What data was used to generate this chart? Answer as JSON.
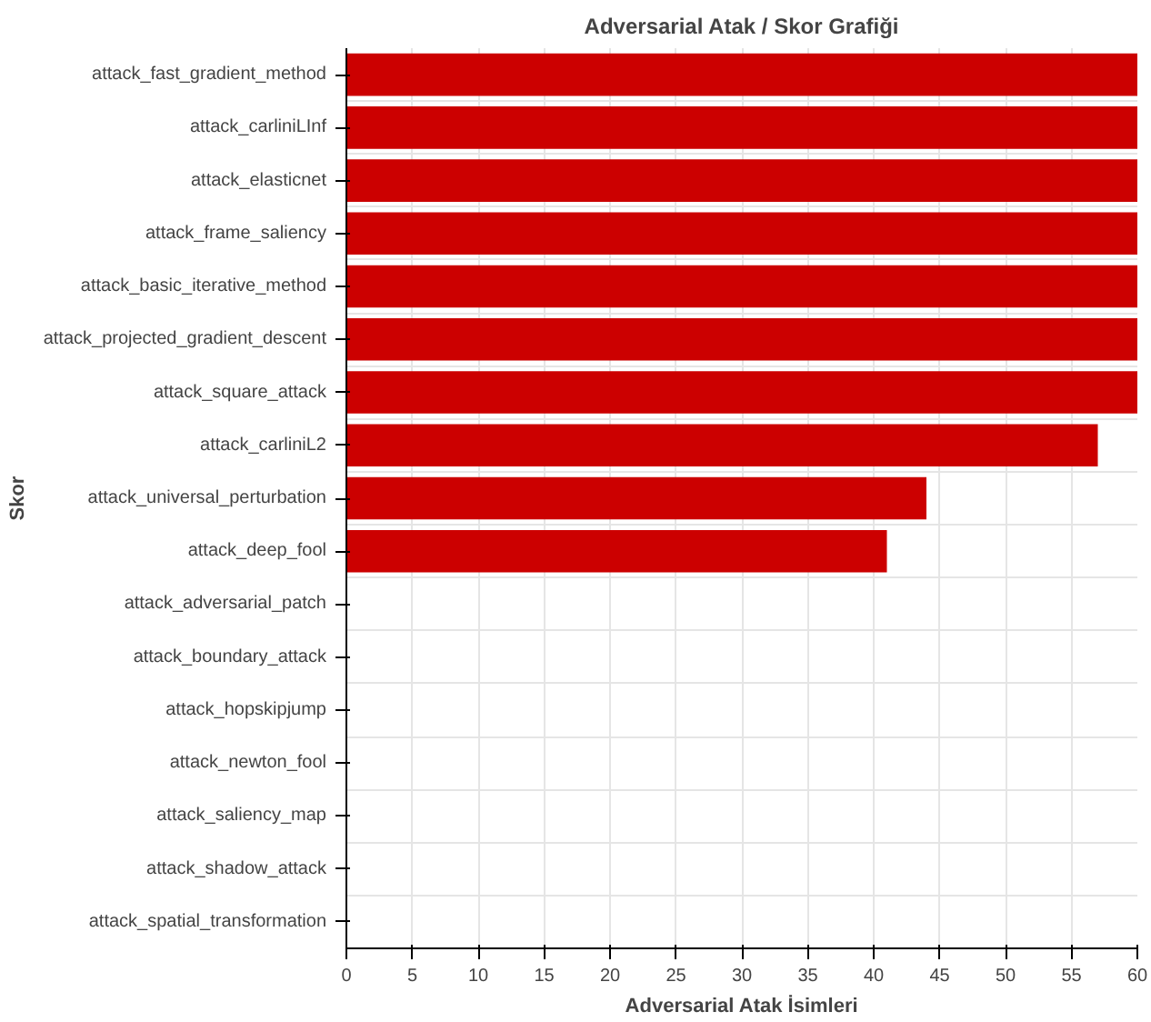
{
  "chart_data": {
    "type": "bar",
    "orientation": "horizontal",
    "title": "Adversarial Atak / Skor Grafiği",
    "xlabel": "Adversarial Atak İsimleri",
    "ylabel": "Skor",
    "categories": [
      "attack_fast_gradient_method",
      "attack_carliniLInf",
      "attack_elasticnet",
      "attack_frame_saliency",
      "attack_basic_iterative_method",
      "attack_projected_gradient_descent",
      "attack_square_attack",
      "attack_carliniL2",
      "attack_universal_perturbation",
      "attack_deep_fool",
      "attack_adversarial_patch",
      "attack_boundary_attack",
      "attack_hopskipjump",
      "attack_newton_fool",
      "attack_saliency_map",
      "attack_shadow_attack",
      "attack_spatial_transformation"
    ],
    "values": [
      60,
      60,
      60,
      60,
      60,
      60,
      60,
      57,
      44,
      41,
      0,
      0,
      0,
      0,
      0,
      0,
      0
    ],
    "color": "#cc0000",
    "xlim": [
      0,
      60
    ],
    "xticks": [
      0,
      5,
      10,
      15,
      20,
      25,
      30,
      35,
      40,
      45,
      50,
      55,
      60
    ],
    "grid": true
  }
}
